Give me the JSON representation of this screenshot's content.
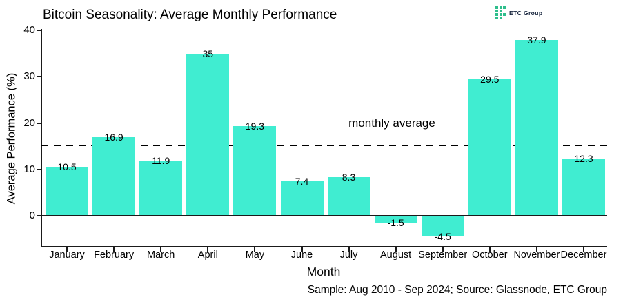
{
  "header": {
    "logo_text": "ETC Group",
    "logo_icon": "etc-group-pixel-grid",
    "logo_color": "#2EBE8C"
  },
  "chart_data": {
    "type": "bar",
    "title": "Bitcoin Seasonality: Average Monthly Performance",
    "categories": [
      "January",
      "February",
      "March",
      "April",
      "May",
      "June",
      "July",
      "August",
      "September",
      "October",
      "November",
      "December"
    ],
    "values": [
      10.5,
      16.9,
      11.9,
      35,
      19.3,
      7.4,
      8.3,
      -1.5,
      -4.5,
      29.5,
      37.9,
      12.3
    ],
    "xlabel": "Month",
    "ylabel": "Average Performance (%)",
    "ylim": [
      -7,
      40
    ],
    "yticks": [
      0,
      10,
      20,
      30,
      40
    ],
    "average_line": {
      "value": 15.1,
      "label": "monthly average"
    },
    "bar_color": "#40EDD1",
    "axis_color": "#1a1a1a",
    "grid": "off",
    "legend": "none",
    "caption": "Sample: Aug 2010 - Sep 2024; Source: Glassnode, ETC Group"
  }
}
